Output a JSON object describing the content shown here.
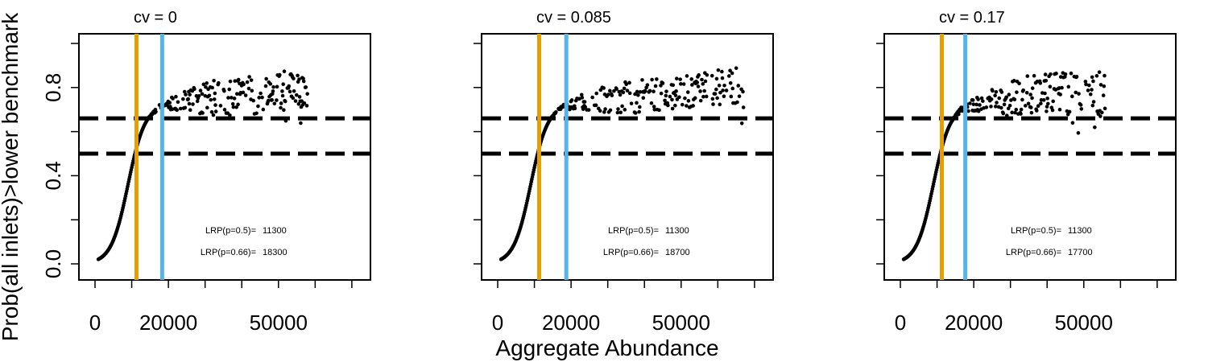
{
  "figure": {
    "ylabel": "Prob(all inlets)>lower benchmark",
    "xlabel": "Aggregate Abundance"
  },
  "colors": {
    "lrp_p05_line": "#E69F00",
    "lrp_p066_line": "#56B4E9",
    "points": "#000000",
    "benchmarks": "#000000"
  },
  "chart_data": [
    {
      "type": "scatter",
      "title": "cv = 0",
      "xticks": [
        0,
        20000,
        50000
      ],
      "xtick_marks": [
        0,
        10000,
        20000,
        30000,
        40000,
        50000,
        60000,
        70000
      ],
      "yticks": [
        0.0,
        0.4,
        0.8
      ],
      "ytick_marks": [
        0.0,
        0.2,
        0.4,
        0.6,
        0.8,
        1.0
      ],
      "xlim": [
        0,
        72000
      ],
      "ylim": [
        0,
        1
      ],
      "hlines": [
        0.5,
        0.66
      ],
      "vlines": [
        {
          "x": 11300,
          "color": "#E69F00"
        },
        {
          "x": 18300,
          "color": "#56B4E9"
        }
      ],
      "annotations": [
        {
          "label": "LRP(p=0.5)=",
          "value": "11300"
        },
        {
          "label": "LRP(p=0.66)=",
          "value": "18300"
        }
      ],
      "xmax_data": 58000,
      "scatter": 0.09,
      "seed": 11
    },
    {
      "type": "scatter",
      "title": "cv = 0.085",
      "xticks": [
        0,
        20000,
        50000
      ],
      "xtick_marks": [
        0,
        10000,
        20000,
        30000,
        40000,
        50000,
        60000,
        70000
      ],
      "yticks": [
        0.0,
        0.4,
        0.8
      ],
      "ytick_marks": [
        0.0,
        0.2,
        0.4,
        0.6,
        0.8,
        1.0
      ],
      "xlim": [
        0,
        72000
      ],
      "ylim": [
        0,
        1
      ],
      "hlines": [
        0.5,
        0.66
      ],
      "vlines": [
        {
          "x": 11300,
          "color": "#E69F00"
        },
        {
          "x": 18700,
          "color": "#56B4E9"
        }
      ],
      "annotations": [
        {
          "label": "LRP(p=0.5)=",
          "value": "11300"
        },
        {
          "label": "LRP(p=0.66)=",
          "value": "18700"
        }
      ],
      "xmax_data": 67000,
      "scatter": 0.08,
      "seed": 23
    },
    {
      "type": "scatter",
      "title": "cv = 0.17",
      "xticks": [
        0,
        20000,
        50000
      ],
      "xtick_marks": [
        0,
        10000,
        20000,
        30000,
        40000,
        50000,
        60000,
        70000
      ],
      "yticks": [
        0.0,
        0.4,
        0.8
      ],
      "ytick_marks": [
        0.0,
        0.2,
        0.4,
        0.6,
        0.8,
        1.0
      ],
      "xlim": [
        0,
        72000
      ],
      "ylim": [
        0,
        1
      ],
      "hlines": [
        0.5,
        0.66
      ],
      "vlines": [
        {
          "x": 11300,
          "color": "#E69F00"
        },
        {
          "x": 17700,
          "color": "#56B4E9"
        }
      ],
      "annotations": [
        {
          "label": "LRP(p=0.5)=",
          "value": "11300"
        },
        {
          "label": "LRP(p=0.66)=",
          "value": "17700"
        }
      ],
      "xmax_data": 56000,
      "scatter": 0.1,
      "seed": 37
    }
  ]
}
